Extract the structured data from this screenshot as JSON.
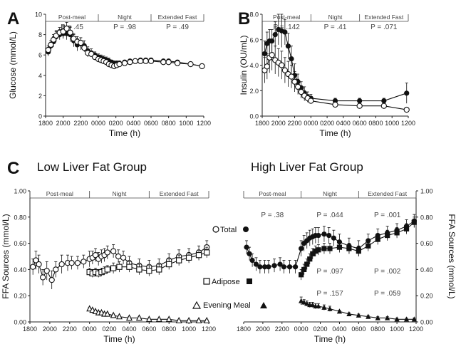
{
  "figure": {
    "panel_labels": [
      "A",
      "B",
      "C"
    ],
    "group_titles": [
      "Low Liver Fat Group",
      "High Liver Fat Group"
    ],
    "legend_labels": [
      "Total",
      "Adipose",
      "Evening Meal"
    ]
  },
  "chart_data": [
    {
      "id": "A",
      "type": "line",
      "title": "",
      "xlabel": "Time (h)",
      "ylabel": "Glucose (mmol/L)",
      "xlim": [
        0,
        18
      ],
      "x_tick_positions": [
        0,
        2,
        4,
        6,
        8,
        10,
        12,
        14,
        16,
        18
      ],
      "x_tick_labels": [
        "1800",
        "2000",
        "2200",
        "0000",
        "0200",
        "0400",
        "0600",
        "0800",
        "1000",
        "1200"
      ],
      "ylim": [
        0,
        10
      ],
      "y_ticks": [
        0,
        2,
        4,
        6,
        8,
        10
      ],
      "phases": [
        {
          "label": "Post-meal",
          "start": 0,
          "end": 6,
          "p": "P = .45"
        },
        {
          "label": "Night",
          "start": 6,
          "end": 12,
          "p": "P = .98"
        },
        {
          "label": "Extended Fast",
          "start": 12,
          "end": 18,
          "p": "P = .49"
        }
      ],
      "series": [
        {
          "style": "filled",
          "x": [
            0.3,
            0.6,
            0.9,
            1.2,
            1.6,
            2.0,
            2.4,
            2.8,
            3.2,
            3.6,
            4.0,
            4.4,
            4.8,
            5.2,
            5.6,
            6.0,
            6.3,
            6.6,
            6.9,
            7.2,
            7.5,
            7.8,
            8.1,
            8.4,
            9.0,
            9.6,
            10.2,
            10.8,
            11.4,
            12.0,
            13.4,
            14.0,
            15.0,
            16.5,
            17.8
          ],
          "y": [
            6.3,
            6.9,
            7.3,
            7.8,
            8.0,
            8.1,
            8.1,
            8.0,
            7.4,
            7.0,
            7.1,
            6.9,
            6.4,
            6.2,
            6.0,
            5.8,
            5.7,
            5.6,
            5.5,
            5.4,
            5.3,
            5.2,
            5.2,
            5.2,
            5.3,
            5.4,
            5.4,
            5.5,
            5.5,
            5.5,
            5.4,
            5.4,
            5.3,
            5.1,
            4.9
          ],
          "err": [
            0.4,
            0.5,
            0.5,
            0.5,
            0.5,
            0.5,
            0.6,
            0.7,
            0.6,
            0.6,
            0.6,
            0.5,
            0.4,
            0.4,
            0.3,
            0.3,
            0.3,
            0.3,
            0.3,
            0.3,
            0.2,
            0.2,
            0.2,
            0.2,
            0.2,
            0.2,
            0.2,
            0.2,
            0.2,
            0.2,
            0.2,
            0.2,
            0.2,
            0.2,
            0.2
          ]
        },
        {
          "style": "open",
          "x": [
            0.3,
            0.6,
            0.9,
            1.2,
            1.6,
            2.0,
            2.4,
            2.8,
            3.2,
            3.6,
            4.0,
            4.4,
            4.8,
            5.2,
            5.6,
            6.0,
            6.3,
            6.6,
            6.9,
            7.2,
            7.5,
            7.8,
            8.1,
            8.4,
            9.0,
            9.6,
            10.2,
            10.8,
            11.4,
            12.0,
            13.4,
            14.0,
            15.0,
            16.5,
            17.8
          ],
          "y": [
            6.5,
            7.0,
            7.5,
            7.9,
            8.2,
            8.3,
            8.6,
            8.2,
            7.6,
            7.3,
            7.2,
            6.7,
            6.2,
            6.1,
            5.8,
            5.6,
            5.5,
            5.4,
            5.3,
            5.1,
            5.0,
            4.9,
            5.0,
            5.1,
            5.2,
            5.3,
            5.4,
            5.4,
            5.4,
            5.4,
            5.3,
            5.3,
            5.2,
            5.1,
            4.9
          ],
          "err": [
            0.4,
            0.4,
            0.5,
            0.5,
            0.5,
            0.6,
            0.6,
            0.6,
            0.5,
            0.5,
            0.5,
            0.4,
            0.4,
            0.3,
            0.3,
            0.3,
            0.2,
            0.2,
            0.2,
            0.2,
            0.2,
            0.2,
            0.2,
            0.2,
            0.2,
            0.2,
            0.2,
            0.2,
            0.2,
            0.2,
            0.2,
            0.2,
            0.2,
            0.2,
            0.2
          ]
        }
      ]
    },
    {
      "id": "B",
      "type": "line",
      "title": "",
      "xlabel": "Time (h)",
      "ylabel": "Insulin (OU/mL)",
      "xlim": [
        0,
        18
      ],
      "x_tick_positions": [
        0,
        2,
        4,
        6,
        8,
        10,
        12,
        14,
        16,
        18
      ],
      "x_tick_labels": [
        "1800",
        "2000",
        "2200",
        "0000",
        "0200",
        "0400",
        "0600",
        "0800",
        "1000",
        "1200"
      ],
      "ylim": [
        0,
        8
      ],
      "y_ticks": [
        0,
        2,
        4,
        6,
        8
      ],
      "y_tick_labels": [
        "0.0",
        "2.0",
        "4.0",
        "6.0",
        "8.0"
      ],
      "phases": [
        {
          "label": "Post-meal",
          "start": 0,
          "end": 6,
          "p": "P = .142"
        },
        {
          "label": "Night",
          "start": 6,
          "end": 12,
          "p": "P = .41"
        },
        {
          "label": "Extended Fast",
          "start": 12,
          "end": 18,
          "p": "P = .071"
        }
      ],
      "series": [
        {
          "style": "filled",
          "x": [
            0.3,
            0.6,
            0.9,
            1.2,
            1.6,
            2.0,
            2.4,
            2.8,
            3.2,
            3.6,
            4.0,
            4.4,
            4.8,
            5.2,
            5.6,
            6.0,
            9.0,
            12.0,
            15.0,
            17.8
          ],
          "y": [
            4.9,
            5.7,
            5.9,
            5.9,
            6.4,
            6.8,
            6.7,
            6.6,
            5.5,
            4.5,
            3.2,
            2.7,
            2.2,
            1.8,
            1.5,
            1.4,
            1.2,
            1.2,
            1.2,
            1.8
          ],
          "err": [
            1.0,
            0.9,
            0.9,
            0.9,
            1.0,
            1.2,
            1.3,
            1.0,
            1.0,
            1.0,
            0.9,
            0.6,
            0.5,
            0.5,
            0.4,
            0.3,
            0.2,
            0.2,
            0.2,
            0.8
          ]
        },
        {
          "style": "open",
          "x": [
            0.3,
            0.6,
            0.9,
            1.2,
            1.6,
            2.0,
            2.4,
            2.8,
            3.2,
            3.6,
            4.0,
            4.4,
            4.8,
            5.2,
            5.6,
            6.0,
            9.0,
            12.0,
            15.0,
            17.8
          ],
          "y": [
            3.6,
            3.9,
            4.6,
            4.8,
            4.4,
            4.2,
            4.0,
            3.6,
            3.3,
            3.1,
            2.7,
            2.3,
            1.9,
            1.6,
            1.4,
            1.2,
            0.9,
            0.8,
            0.8,
            0.5
          ],
          "err": [
            1.0,
            1.0,
            1.2,
            1.2,
            1.1,
            1.1,
            1.1,
            1.0,
            1.0,
            0.9,
            0.8,
            0.6,
            0.5,
            0.4,
            0.3,
            0.2,
            0.2,
            0.2,
            0.2,
            0.1
          ]
        }
      ]
    },
    {
      "id": "C-left",
      "type": "line",
      "title": "Low Liver Fat Group",
      "xlabel": "Time (h)",
      "ylabel": "FFA Sources (mmol/L)",
      "xlim": [
        0,
        18
      ],
      "x_tick_positions": [
        0,
        2,
        4,
        6,
        8,
        10,
        12,
        14,
        16,
        18
      ],
      "x_tick_labels": [
        "1800",
        "2000",
        "2200",
        "0000",
        "0200",
        "0400",
        "0600",
        "0800",
        "1000",
        "1200"
      ],
      "ylim": [
        0,
        1
      ],
      "y_ticks": [
        0,
        0.2,
        0.4,
        0.6,
        0.8,
        1.0
      ],
      "y_tick_labels": [
        "0.00",
        "0.20",
        "0.40",
        "0.60",
        "0.80",
        "1.00"
      ],
      "phases": [
        {
          "label": "Post-meal",
          "start": 0,
          "end": 6
        },
        {
          "label": "Night",
          "start": 6,
          "end": 12
        },
        {
          "label": "Extended Fast",
          "start": 12,
          "end": 18
        }
      ],
      "series": [
        {
          "name": "Total",
          "marker": "open-circle",
          "x": [
            0.3,
            0.6,
            0.9,
            1.3,
            1.7,
            2.2,
            2.6,
            3.2,
            3.8,
            4.2,
            4.8,
            5.4,
            6.0,
            6.3,
            6.6,
            6.9,
            7.2,
            7.5,
            7.8,
            8.4,
            8.9,
            9.4,
            10.0,
            11.0,
            12.0,
            13.0,
            14.0,
            15.0,
            16.0,
            17.0,
            17.8
          ],
          "y": [
            0.42,
            0.47,
            0.44,
            0.34,
            0.39,
            0.32,
            0.4,
            0.44,
            0.45,
            0.45,
            0.45,
            0.46,
            0.48,
            0.49,
            0.51,
            0.48,
            0.5,
            0.51,
            0.53,
            0.54,
            0.5,
            0.49,
            0.45,
            0.43,
            0.42,
            0.43,
            0.47,
            0.5,
            0.51,
            0.53,
            0.57
          ],
          "err": [
            0.06,
            0.07,
            0.07,
            0.06,
            0.07,
            0.07,
            0.06,
            0.07,
            0.06,
            0.05,
            0.05,
            0.05,
            0.06,
            0.05,
            0.05,
            0.05,
            0.05,
            0.05,
            0.05,
            0.05,
            0.05,
            0.05,
            0.05,
            0.05,
            0.05,
            0.05,
            0.05,
            0.05,
            0.05,
            0.05,
            0.05
          ]
        },
        {
          "name": "Adipose",
          "marker": "open-square",
          "x": [
            6.0,
            6.3,
            6.6,
            6.9,
            7.2,
            7.5,
            7.8,
            8.4,
            9.0,
            10.0,
            11.0,
            12.0,
            13.0,
            14.0,
            15.0,
            16.0,
            17.0,
            17.8
          ],
          "y": [
            0.38,
            0.37,
            0.38,
            0.37,
            0.38,
            0.39,
            0.4,
            0.41,
            0.42,
            0.42,
            0.4,
            0.39,
            0.4,
            0.44,
            0.47,
            0.49,
            0.51,
            0.53
          ],
          "err": [
            0.03,
            0.03,
            0.03,
            0.03,
            0.03,
            0.03,
            0.03,
            0.04,
            0.04,
            0.04,
            0.04,
            0.04,
            0.04,
            0.04,
            0.04,
            0.04,
            0.04,
            0.04
          ]
        },
        {
          "name": "Evening Meal",
          "marker": "open-triangle",
          "x": [
            6.0,
            6.3,
            6.6,
            6.9,
            7.2,
            7.5,
            7.8,
            8.4,
            9.0,
            10.0,
            11.0,
            12.0,
            13.0,
            14.0,
            15.0,
            16.0,
            17.0,
            17.8
          ],
          "y": [
            0.1,
            0.09,
            0.08,
            0.07,
            0.07,
            0.06,
            0.06,
            0.05,
            0.04,
            0.03,
            0.03,
            0.02,
            0.02,
            0.02,
            0.01,
            0.01,
            0.01,
            0.01
          ],
          "err": [
            0.01,
            0.01,
            0.01,
            0.01,
            0.01,
            0.01,
            0.01,
            0.01,
            0.01,
            0.01,
            0.01,
            0.01,
            0.01,
            0.01,
            0.01,
            0.01,
            0.01,
            0.01
          ]
        }
      ]
    },
    {
      "id": "C-right",
      "type": "line",
      "title": "High Liver Fat Group",
      "xlabel": "Time (h)",
      "ylabel": "FFA Sources (mmol/L)",
      "xlim": [
        0,
        18
      ],
      "x_tick_positions": [
        0,
        2,
        4,
        6,
        8,
        10,
        12,
        14,
        16,
        18
      ],
      "x_tick_labels": [
        "1800",
        "2000",
        "2200",
        "0000",
        "0200",
        "0400",
        "0600",
        "0800",
        "1000",
        "1200"
      ],
      "ylim": [
        0,
        1
      ],
      "y_ticks": [
        0,
        0.2,
        0.4,
        0.6,
        0.8,
        1.0
      ],
      "y_tick_labels": [
        "0.00",
        "0.20",
        "0.40",
        "0.60",
        "0.80",
        "1.00"
      ],
      "phases": [
        {
          "label": "Post-meal",
          "start": 0,
          "end": 6
        },
        {
          "label": "Night",
          "start": 6,
          "end": 12
        },
        {
          "label": "Extended Fast",
          "start": 12,
          "end": 18
        }
      ],
      "p_values": {
        "total": [
          "P = .38",
          "P = .044",
          "P = .001"
        ],
        "adipose": [
          "P = .097",
          "P = .002"
        ],
        "evening_meal": [
          "P = .157",
          "P = .059"
        ]
      },
      "series": [
        {
          "name": "Total",
          "marker": "filled-circle",
          "x": [
            0.3,
            0.6,
            0.9,
            1.3,
            1.7,
            2.2,
            2.6,
            3.2,
            3.8,
            4.2,
            4.8,
            5.4,
            6.0,
            6.3,
            6.6,
            6.9,
            7.2,
            7.5,
            7.8,
            8.4,
            8.9,
            9.4,
            10.0,
            11.0,
            12.0,
            13.0,
            14.0,
            15.0,
            16.0,
            17.0,
            17.8
          ],
          "y": [
            0.57,
            0.52,
            0.47,
            0.44,
            0.42,
            0.42,
            0.42,
            0.43,
            0.44,
            0.42,
            0.42,
            0.42,
            0.56,
            0.6,
            0.62,
            0.64,
            0.65,
            0.66,
            0.66,
            0.67,
            0.66,
            0.64,
            0.61,
            0.58,
            0.56,
            0.62,
            0.66,
            0.68,
            0.7,
            0.73,
            0.77
          ],
          "err": [
            0.05,
            0.05,
            0.05,
            0.05,
            0.05,
            0.05,
            0.05,
            0.05,
            0.05,
            0.05,
            0.05,
            0.05,
            0.06,
            0.06,
            0.06,
            0.06,
            0.06,
            0.06,
            0.06,
            0.06,
            0.06,
            0.06,
            0.06,
            0.06,
            0.06,
            0.05,
            0.05,
            0.05,
            0.05,
            0.05,
            0.05
          ]
        },
        {
          "name": "Adipose",
          "marker": "filled-square",
          "x": [
            6.0,
            6.3,
            6.6,
            6.9,
            7.2,
            7.5,
            7.8,
            8.4,
            9.0,
            10.0,
            11.0,
            12.0,
            13.0,
            14.0,
            15.0,
            16.0,
            17.0,
            17.8
          ],
          "y": [
            0.36,
            0.4,
            0.44,
            0.48,
            0.52,
            0.54,
            0.55,
            0.56,
            0.56,
            0.57,
            0.56,
            0.54,
            0.58,
            0.63,
            0.66,
            0.68,
            0.71,
            0.76
          ],
          "err": [
            0.04,
            0.04,
            0.04,
            0.04,
            0.04,
            0.04,
            0.04,
            0.04,
            0.04,
            0.04,
            0.04,
            0.04,
            0.04,
            0.04,
            0.04,
            0.04,
            0.04,
            0.04
          ]
        },
        {
          "name": "Evening Meal",
          "marker": "filled-triangle",
          "x": [
            6.0,
            6.3,
            6.6,
            6.9,
            7.2,
            7.5,
            7.8,
            8.4,
            9.0,
            10.0,
            11.0,
            12.0,
            13.0,
            14.0,
            15.0,
            16.0,
            17.0,
            17.8
          ],
          "y": [
            0.16,
            0.15,
            0.14,
            0.13,
            0.13,
            0.12,
            0.12,
            0.11,
            0.1,
            0.08,
            0.06,
            0.05,
            0.04,
            0.03,
            0.03,
            0.02,
            0.02,
            0.02
          ],
          "err": [
            0.03,
            0.02,
            0.02,
            0.02,
            0.02,
            0.02,
            0.02,
            0.02,
            0.02,
            0.01,
            0.01,
            0.01,
            0.01,
            0.01,
            0.01,
            0.01,
            0.01,
            0.01
          ]
        }
      ]
    }
  ]
}
